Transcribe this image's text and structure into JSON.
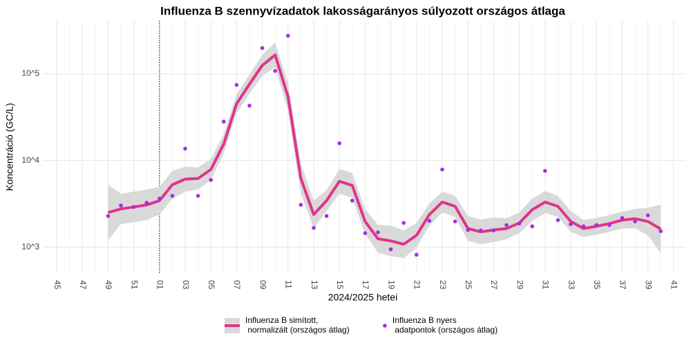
{
  "chart_data": {
    "type": "line",
    "title": "Influenza B szennyvízadatok lakosságarányos súlyozott országos átlaga",
    "x_label": "2024/2025 hetei",
    "y_label": "Koncentráció (GC/L)",
    "log_y": true,
    "grid": true,
    "legend_position": "bottom",
    "vline": "01",
    "categories": [
      "45",
      null,
      "47",
      null,
      "49",
      null,
      "51",
      null,
      "01",
      null,
      "03",
      null,
      "05",
      null,
      "07",
      null,
      "09",
      null,
      "11",
      null,
      "13",
      null,
      "15",
      null,
      "17",
      null,
      "19",
      null,
      "21",
      null,
      "23",
      null,
      "25",
      null,
      "27",
      null,
      "29",
      null,
      "31",
      null,
      "33",
      null,
      "35",
      null,
      "37",
      null,
      "39",
      null,
      "41"
    ],
    "ylim": [
      500,
      410000
    ],
    "yticks": [
      {
        "value": 1000,
        "label": "10^3"
      },
      {
        "value": 10000,
        "label": "10^4"
      },
      {
        "value": 100000,
        "label": "10^5"
      }
    ],
    "series": [
      {
        "name": "Influenza B simított,\n normalizált (országos átlag)",
        "type": "line",
        "color": "#e0338a",
        "band_color": "#d9d9d9",
        "values": [
          null,
          null,
          null,
          null,
          2510,
          2760,
          2910,
          3070,
          3440,
          5250,
          6090,
          6200,
          7870,
          15500,
          45100,
          75900,
          125000,
          165000,
          54500,
          6200,
          2380,
          3440,
          5750,
          5150,
          1980,
          1250,
          1180,
          1080,
          1370,
          2380,
          3310,
          2960,
          1640,
          1500,
          1580,
          1640,
          1900,
          2700,
          3310,
          2960,
          1980,
          1640,
          1740,
          1870,
          2050,
          2130,
          1980,
          1620,
          null
        ],
        "lower": [
          null,
          null,
          null,
          null,
          1200,
          1840,
          1940,
          2050,
          2380,
          3630,
          4380,
          4630,
          5960,
          12000,
          35000,
          58800,
          94700,
          119000,
          37700,
          4130,
          1650,
          2610,
          4140,
          3710,
          1420,
          865,
          787,
          747,
          986,
          1780,
          2510,
          2240,
          1180,
          1080,
          1140,
          1240,
          1440,
          2010,
          2470,
          2240,
          1500,
          1310,
          1390,
          1500,
          1640,
          1650,
          1370,
          850,
          null
        ],
        "upper": [
          null,
          null,
          null,
          null,
          5250,
          4140,
          4370,
          4610,
          4970,
          7590,
          8470,
          8310,
          10400,
          20000,
          58200,
          97900,
          165000,
          229000,
          78800,
          9300,
          3440,
          4540,
          7990,
          7160,
          2750,
          1810,
          1770,
          1560,
          1900,
          3190,
          4370,
          3910,
          2280,
          2090,
          2200,
          2160,
          2510,
          3620,
          4440,
          3910,
          2610,
          2050,
          2180,
          2340,
          2560,
          2750,
          2860,
          3090,
          null
        ]
      },
      {
        "name": "Influenza B nyers\n adatpontok (országos átlag)",
        "type": "scatter",
        "color": "#a32de6",
        "values": [
          null,
          null,
          null,
          null,
          2290,
          3020,
          2910,
          3250,
          3630,
          3910,
          13700,
          3910,
          5970,
          28100,
          74500,
          42900,
          198000,
          108000,
          275000,
          3080,
          1670,
          2290,
          15800,
          3440,
          1450,
          1480,
          946,
          1905,
          817,
          2010,
          7870,
          1980,
          1580,
          1560,
          1560,
          1800,
          1870,
          1740,
          7590,
          2050,
          1840,
          1740,
          1800,
          1800,
          2170,
          1980,
          2330,
          1530,
          null
        ]
      }
    ]
  }
}
